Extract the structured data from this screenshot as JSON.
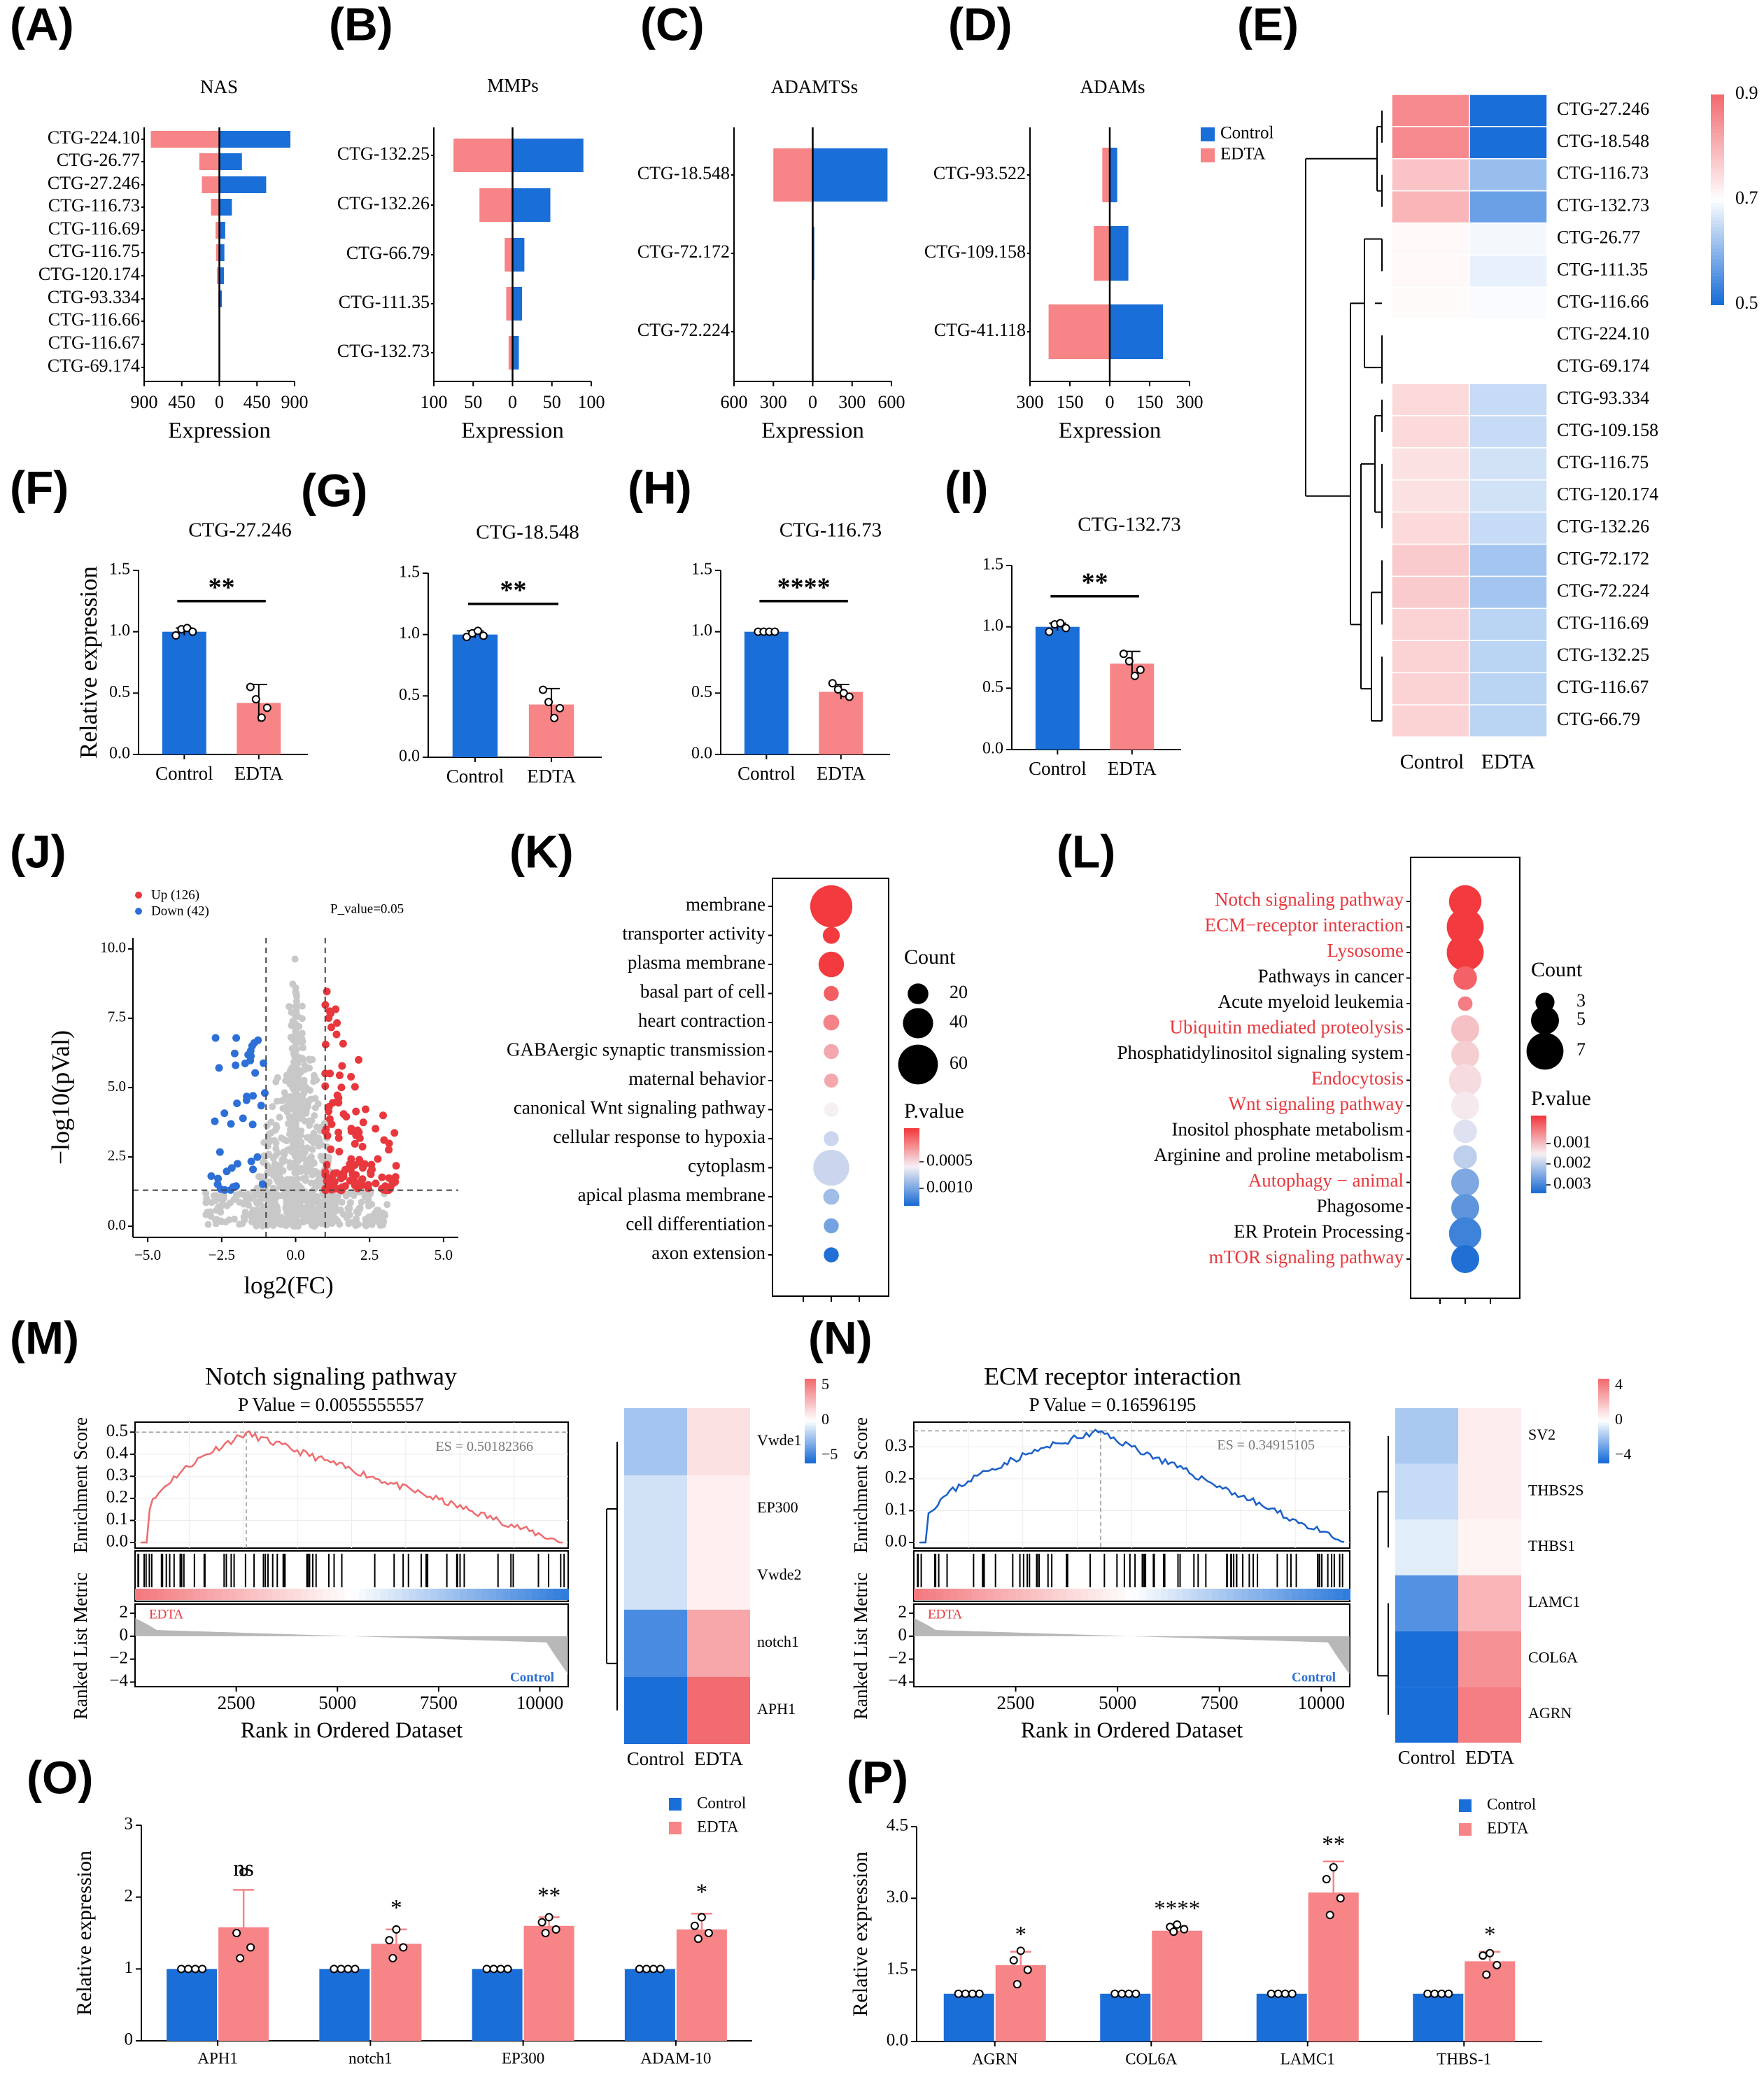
{
  "colors": {
    "control": "#1a6ed8",
    "edta": "#f78487",
    "black": "#000000",
    "grey": "#c8c8c8",
    "red": "#e8383d",
    "blue": "#2d6fd6"
  },
  "chart_data": [
    {
      "id": "A",
      "panel_label": "(A)",
      "type": "bar",
      "orientation": "horizontal-diverging",
      "title": "NAS",
      "xlabel": "Expression",
      "xticks": [
        "900",
        "450",
        "0",
        "450",
        "900"
      ],
      "xlim": [
        -900,
        900
      ],
      "categories": [
        "CTG-224.10",
        "CTG-26.77",
        "CTG-27.246",
        "CTG-116.73",
        "CTG-116.69",
        "CTG-116.75",
        "CTG-120.174",
        "CTG-93.334",
        "CTG-116.66",
        "CTG-116.67",
        "CTG-69.174"
      ],
      "series": [
        {
          "name": "Control",
          "values": [
            850,
            270,
            560,
            150,
            70,
            60,
            55,
            30,
            5,
            5,
            3
          ]
        },
        {
          "name": "EDTA",
          "values": [
            820,
            240,
            210,
            100,
            45,
            40,
            30,
            12,
            3,
            3,
            2
          ]
        }
      ]
    },
    {
      "id": "B",
      "panel_label": "(B)",
      "type": "bar",
      "orientation": "horizontal-diverging",
      "title": "MMPs",
      "xlabel": "Expression",
      "xticks": [
        "100",
        "50",
        "0",
        "50",
        "100"
      ],
      "xlim": [
        -100,
        100
      ],
      "categories": [
        "CTG-132.25",
        "CTG-132.26",
        "CTG-66.79",
        "CTG-111.35",
        "CTG-132.73"
      ],
      "series": [
        {
          "name": "Control",
          "values": [
            90,
            48,
            15,
            12,
            8
          ]
        },
        {
          "name": "EDTA",
          "values": [
            75,
            42,
            10,
            8,
            5
          ]
        }
      ]
    },
    {
      "id": "C",
      "panel_label": "(C)",
      "type": "bar",
      "orientation": "horizontal-diverging",
      "title": "ADAMTSs",
      "xlabel": "Expression",
      "xticks": [
        "600",
        "300",
        "0",
        "300",
        "600"
      ],
      "xlim": [
        -600,
        600
      ],
      "categories": [
        "CTG-18.548",
        "CTG-72.172",
        "CTG-72.224"
      ],
      "series": [
        {
          "name": "Control",
          "values": [
            570,
            12,
            5
          ]
        },
        {
          "name": "EDTA",
          "values": [
            300,
            8,
            3
          ]
        }
      ]
    },
    {
      "id": "D",
      "panel_label": "(D)",
      "type": "bar",
      "orientation": "horizontal-diverging",
      "title": "ADAMs",
      "xlabel": "Expression",
      "xticks": [
        "300",
        "150",
        "0",
        "150",
        "300"
      ],
      "xlim": [
        -300,
        300
      ],
      "legend": [
        "Control",
        "EDTA"
      ],
      "categories": [
        "CTG-93.522",
        "CTG-109.158",
        "CTG-41.118"
      ],
      "series": [
        {
          "name": "Control",
          "values": [
            28,
            70,
            200
          ]
        },
        {
          "name": "EDTA",
          "values": [
            28,
            60,
            230
          ]
        }
      ]
    },
    {
      "id": "E",
      "panel_label": "(E)",
      "type": "heatmap",
      "columns": [
        "Control",
        "EDTA"
      ],
      "rows": [
        "CTG-27.246",
        "CTG-18.548",
        "CTG-116.73",
        "CTG-132.73",
        "CTG-26.77",
        "CTG-111.35",
        "CTG-116.66",
        "CTG-224.10",
        "CTG-69.174",
        "CTG-93.334",
        "CTG-109.158",
        "CTG-116.75",
        "CTG-120.174",
        "CTG-132.26",
        "CTG-72.172",
        "CTG-72.224",
        "CTG-116.69",
        "CTG-132.25",
        "CTG-116.67",
        "CTG-66.79"
      ],
      "values": [
        [
          0.86,
          0.5
        ],
        [
          0.86,
          0.5
        ],
        [
          0.78,
          0.61
        ],
        [
          0.8,
          0.57
        ],
        [
          0.71,
          0.69
        ],
        [
          0.71,
          0.68
        ],
        [
          0.705,
          0.695
        ],
        [
          0.7,
          0.7
        ],
        [
          0.7,
          0.7
        ],
        [
          0.75,
          0.65
        ],
        [
          0.75,
          0.65
        ],
        [
          0.74,
          0.66
        ],
        [
          0.74,
          0.66
        ],
        [
          0.75,
          0.65
        ],
        [
          0.77,
          0.62
        ],
        [
          0.77,
          0.62
        ],
        [
          0.76,
          0.64
        ],
        [
          0.76,
          0.64
        ],
        [
          0.76,
          0.64
        ],
        [
          0.76,
          0.64
        ]
      ],
      "colorbar_ticks": [
        "0.9",
        "0.7",
        "0.5"
      ],
      "vmin": 0.5,
      "vmax": 0.9
    },
    {
      "id": "F",
      "panel_label": "(F)",
      "type": "bar",
      "title": "CTG-27.246",
      "ylabel": "Relative expression",
      "categories": [
        "Control",
        "EDTA"
      ],
      "values": [
        1.0,
        0.42
      ],
      "errors": [
        0.03,
        0.15
      ],
      "points": [
        [
          0.97,
          1.02,
          1.03,
          1.0
        ],
        [
          0.55,
          0.45,
          0.3,
          0.38
        ]
      ],
      "significance": "**",
      "ylim": [
        0,
        1.5
      ],
      "yticks": [
        "0.0",
        "0.5",
        "1.0",
        "1.5"
      ]
    },
    {
      "id": "G",
      "panel_label": "(G)",
      "type": "bar",
      "title": "CTG-18.548",
      "categories": [
        "Control",
        "EDTA"
      ],
      "values": [
        1.0,
        0.43
      ],
      "errors": [
        0.03,
        0.13
      ],
      "points": [
        [
          0.98,
          1.01,
          1.03,
          0.99
        ],
        [
          0.55,
          0.45,
          0.32,
          0.4
        ]
      ],
      "significance": "**",
      "ylim": [
        0,
        1.5
      ],
      "yticks": [
        "0.0",
        "0.5",
        "1.0",
        "1.5"
      ]
    },
    {
      "id": "H",
      "panel_label": "(H)",
      "type": "bar",
      "title": "CTG-116.73",
      "categories": [
        "Control",
        "EDTA"
      ],
      "values": [
        1.0,
        0.51
      ],
      "errors": [
        0.02,
        0.06
      ],
      "points": [
        [
          1.0,
          1.0,
          1.0,
          1.0
        ],
        [
          0.58,
          0.53,
          0.5,
          0.47
        ]
      ],
      "significance": "****",
      "ylim": [
        0,
        1.5
      ],
      "yticks": [
        "0.0",
        "0.5",
        "1.0",
        "1.5"
      ]
    },
    {
      "id": "I",
      "panel_label": "(I)",
      "type": "bar",
      "title": "CTG-132.73",
      "categories": [
        "Control",
        "EDTA"
      ],
      "values": [
        1.0,
        0.7
      ],
      "errors": [
        0.03,
        0.1
      ],
      "points": [
        [
          0.96,
          1.02,
          1.03,
          0.99
        ],
        [
          0.78,
          0.72,
          0.6,
          0.65
        ]
      ],
      "significance": "**",
      "ylim": [
        0,
        1.5
      ],
      "yticks": [
        "0.0",
        "0.5",
        "1.0",
        "1.5"
      ]
    },
    {
      "id": "J",
      "panel_label": "(J)",
      "type": "scatter",
      "title": "volcano",
      "xlabel": "log2(FC)",
      "ylabel": "−log10(pVal)",
      "legend": [
        "Up (126)",
        "Down (42)"
      ],
      "annotation": "P_value=0.05",
      "xlim": [
        -5.5,
        5.5
      ],
      "ylim": [
        -0.4,
        10.4
      ],
      "xticks": [
        "−5.0",
        "−2.5",
        "0.0",
        "2.5",
        "5.0"
      ],
      "yticks": [
        "0.0",
        "2.5",
        "5.0",
        "7.5",
        "10.0"
      ],
      "fc_cut": [
        -1,
        1
      ],
      "p_cut": 1.3,
      "up_count": 126,
      "down_count": 42
    },
    {
      "id": "K",
      "panel_label": "(K)",
      "type": "scatter",
      "categories": [
        "membrane",
        "transporter activity",
        "plasma membrane",
        "basal part of cell",
        "heart contraction",
        "GABAergic synaptic transmission",
        "maternal behavior",
        "canonical Wnt signaling pathway",
        "cellular response to hypoxia",
        "cytoplasm",
        "apical plasma membrane",
        "cell differentiation",
        "axon extension"
      ],
      "counts": [
        65,
        12,
        30,
        8,
        10,
        8,
        6,
        7,
        8,
        52,
        10,
        8,
        8
      ],
      "pvalues": [
        0.0002,
        0.0002,
        0.0002,
        0.0003,
        0.0004,
        0.0005,
        0.0005,
        0.0007,
        0.0008,
        0.0008,
        0.0009,
        0.001,
        0.0012
      ],
      "size_legend_title": "Count",
      "size_legend": [
        "20",
        "40",
        "60"
      ],
      "color_legend_title": "P.value",
      "color_legend": [
        "0.0005",
        "0.0010"
      ]
    },
    {
      "id": "L",
      "panel_label": "(L)",
      "type": "scatter",
      "categories": [
        "Notch signaling pathway",
        "ECM−receptor interaction",
        "Lysosome",
        "Pathways in cancer",
        "Acute myeloid leukemia",
        "Ubiquitin mediated proteolysis",
        "Phosphatidylinositol signaling system",
        "Endocytosis",
        "Wnt signaling pathway",
        "Inositol phosphate metabolism",
        "Arginine and proline metabolism",
        "Autophagy − animal",
        "Phagosome",
        "ER Protein Processing",
        "mTOR signaling pathway"
      ],
      "highlighted": [
        true,
        true,
        true,
        false,
        false,
        true,
        false,
        true,
        true,
        false,
        false,
        true,
        false,
        false,
        true
      ],
      "counts": [
        6,
        7,
        7,
        4,
        2,
        5,
        5,
        6,
        5,
        4,
        4,
        5,
        5,
        6,
        5
      ],
      "pvalues": [
        0.0005,
        0.0005,
        0.0005,
        0.0008,
        0.001,
        0.0015,
        0.0016,
        0.0017,
        0.0018,
        0.002,
        0.0022,
        0.0026,
        0.0028,
        0.003,
        0.0032
      ],
      "size_legend_title": "Count",
      "size_legend": [
        "3",
        "5",
        "7"
      ],
      "color_legend_title": "P.value",
      "color_legend": [
        "0.001",
        "0.002",
        "0.003"
      ]
    },
    {
      "id": "M",
      "panel_label": "(M)",
      "type": "line",
      "title": "Notch signaling pathway",
      "subtitle": "P Value = 0.0055555557",
      "es_label": "ES = 0.50182366",
      "ylabel": "Enrichment Score",
      "ylabel2": "Ranked List Metric",
      "xlabel": "Rank in Ordered Dataset",
      "xticks": [
        "2500",
        "5000",
        "7500",
        "10000"
      ],
      "yticks": [
        "0.0",
        "0.1",
        "0.2",
        "0.3",
        "0.4",
        "0.5"
      ],
      "yticks2": [
        "2",
        "0",
        "−2",
        "−4"
      ],
      "label_up": "EDTA",
      "label_down": "Control",
      "heatmap": {
        "rows": [
          "Vwde1",
          "EP300",
          "Vwde2",
          "notch1",
          "APH1"
        ],
        "columns": [
          "Control",
          "EDTA"
        ],
        "values": [
          [
            -2,
            1
          ],
          [
            -1,
            0.5
          ],
          [
            -1,
            0.5
          ],
          [
            -4,
            3
          ],
          [
            -5,
            5
          ]
        ],
        "colorbar": [
          "5",
          "0",
          "−5"
        ]
      }
    },
    {
      "id": "N",
      "panel_label": "(N)",
      "type": "line",
      "title": "ECM receptor interaction",
      "subtitle": "P Value = 0.16596195",
      "es_label": "ES = 0.34915105",
      "ylabel": "Enrichment Score",
      "ylabel2": "Ranked List Metric",
      "xlabel": "Rank in Ordered Dataset",
      "xticks": [
        "2500",
        "5000",
        "7500",
        "10000"
      ],
      "yticks": [
        "0.0",
        "0.1",
        "0.2",
        "0.3"
      ],
      "yticks2": [
        "2",
        "0",
        "−2",
        "−4"
      ],
      "label_up": "EDTA",
      "label_down": "Control",
      "heatmap": {
        "rows": [
          "SV2",
          "THBS2S",
          "THBS1",
          "LAMC1",
          "COL6A",
          "AGRN"
        ],
        "columns": [
          "Control",
          "EDTA"
        ],
        "values": [
          [
            -1.5,
            0.5
          ],
          [
            -1,
            0.5
          ],
          [
            -0.5,
            0.3
          ],
          [
            -3,
            2
          ],
          [
            -4,
            3
          ],
          [
            -5,
            3.5
          ]
        ],
        "colorbar": [
          "4",
          "0",
          "−4"
        ]
      }
    },
    {
      "id": "O",
      "panel_label": "(O)",
      "type": "bar",
      "ylabel": "Relative expression",
      "legend": [
        "Control",
        "EDTA"
      ],
      "categories": [
        "APH1",
        "notch1",
        "EP300",
        "ADAM-10"
      ],
      "series": [
        {
          "name": "Control",
          "values": [
            1,
            1,
            1,
            1
          ],
          "errors": [
            0.02,
            0.02,
            0.02,
            0.02
          ]
        },
        {
          "name": "EDTA",
          "values": [
            1.58,
            1.35,
            1.6,
            1.55
          ],
          "errors": [
            0.52,
            0.2,
            0.12,
            0.22
          ]
        }
      ],
      "edta_points": [
        [
          2.35,
          1.5,
          1.3,
          1.15
        ],
        [
          1.55,
          1.4,
          1.3,
          1.15
        ],
        [
          1.72,
          1.65,
          1.55,
          1.5
        ],
        [
          1.72,
          1.6,
          1.5,
          1.42
        ]
      ],
      "significance": [
        "ns",
        "*",
        "**",
        "*"
      ],
      "ylim": [
        0,
        3
      ],
      "yticks": [
        "0",
        "1",
        "2",
        "3"
      ]
    },
    {
      "id": "P",
      "panel_label": "(P)",
      "type": "bar",
      "ylabel": "Relative expression",
      "legend": [
        "Control",
        "EDTA"
      ],
      "categories": [
        "AGRN",
        "COL6A",
        "LAMC1",
        "THBS-1"
      ],
      "series": [
        {
          "name": "Control",
          "values": [
            1,
            1,
            1,
            1
          ],
          "errors": [
            0.02,
            0.02,
            0.02,
            0.02
          ]
        },
        {
          "name": "EDTA",
          "values": [
            1.6,
            2.32,
            3.12,
            1.68
          ],
          "errors": [
            0.28,
            0.1,
            0.65,
            0.2
          ]
        }
      ],
      "edta_points": [
        [
          1.9,
          1.7,
          1.5,
          1.2
        ],
        [
          2.45,
          2.4,
          2.35,
          2.3
        ],
        [
          3.65,
          3.4,
          3.0,
          2.65
        ],
        [
          1.85,
          1.8,
          1.6,
          1.4
        ]
      ],
      "significance": [
        "*",
        "****",
        "**",
        "*"
      ],
      "ylim": [
        0,
        4.5
      ],
      "yticks": [
        "0.0",
        "1.5",
        "3.0",
        "4.5"
      ]
    }
  ]
}
